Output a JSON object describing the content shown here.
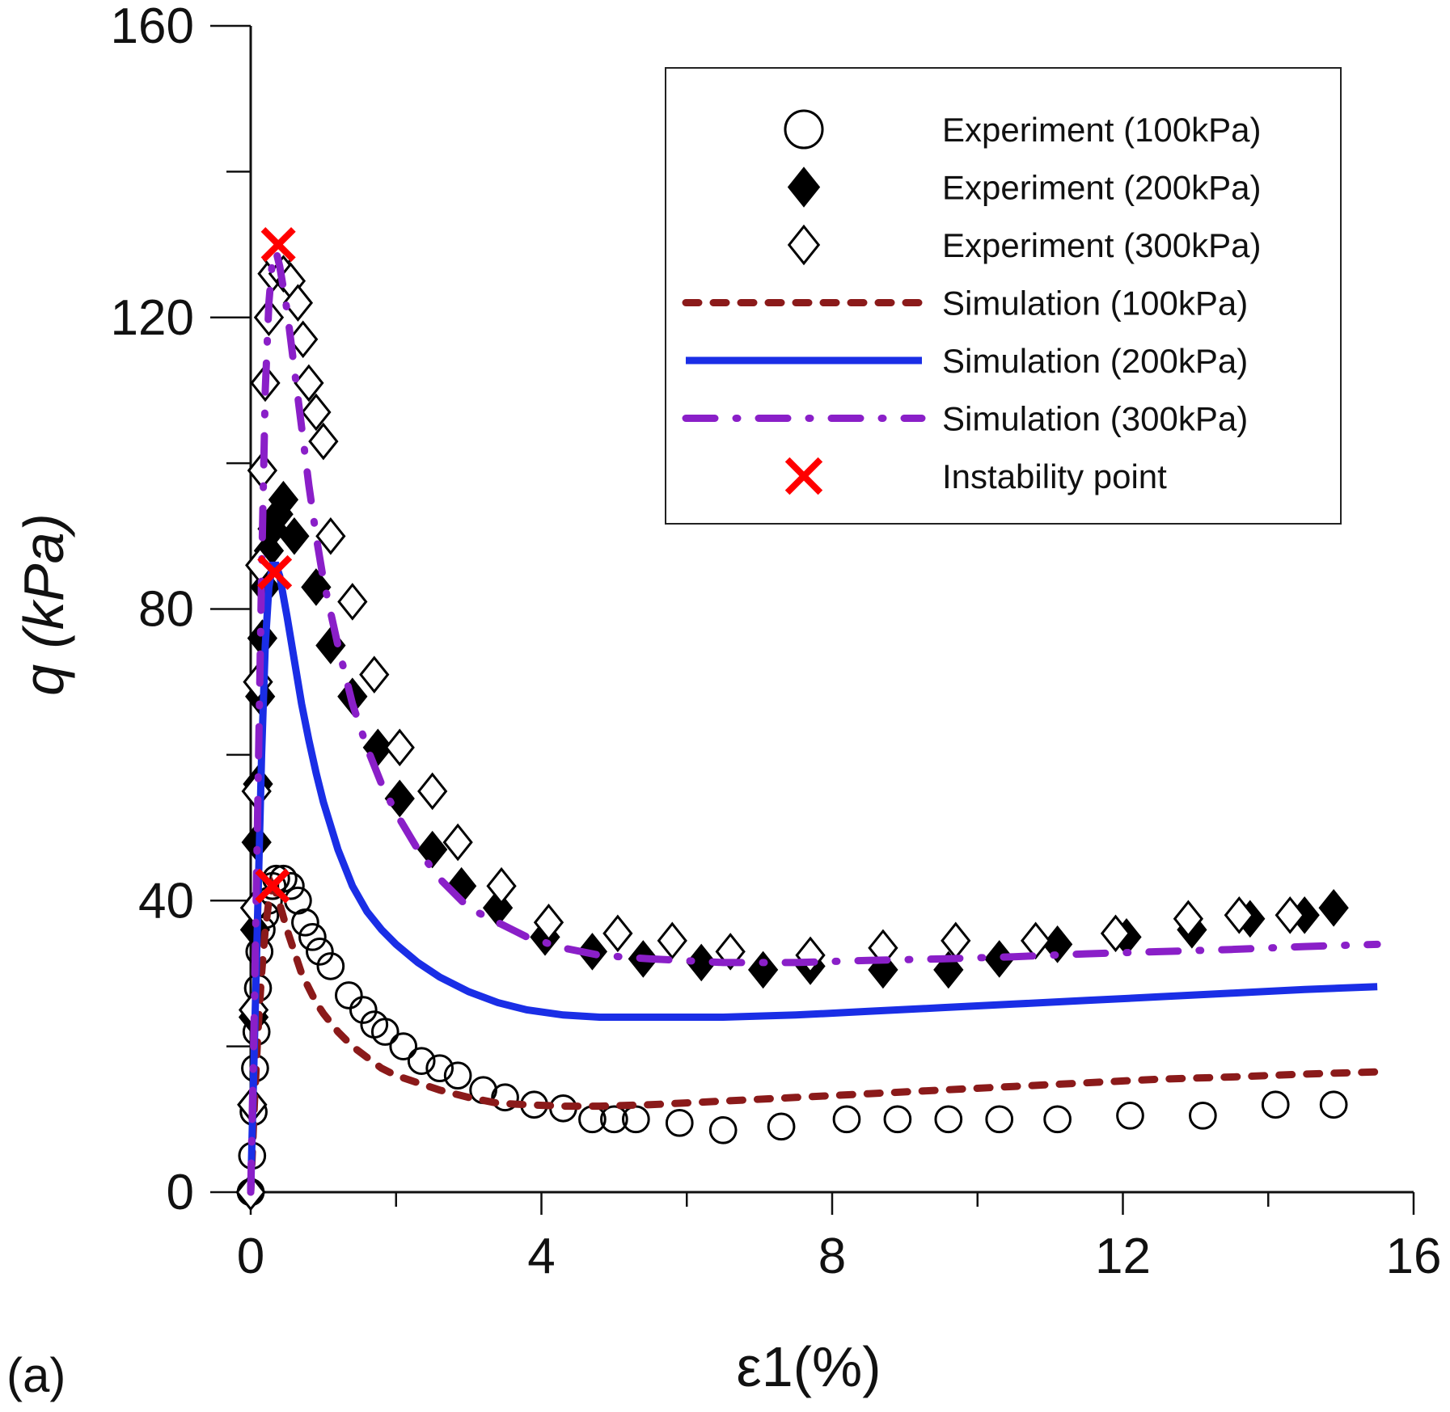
{
  "panel_label": "(a)",
  "chart_data": {
    "type": "scatter",
    "xlabel": "ε1(%)",
    "ylabel": "q (kPa)",
    "xlim": [
      0,
      16
    ],
    "ylim": [
      0,
      160
    ],
    "xticks": [
      0,
      4,
      8,
      12,
      16
    ],
    "yticks": [
      0,
      40,
      80,
      120,
      160
    ],
    "xtick_labels": [
      "0",
      "4",
      "8",
      "12",
      "16"
    ],
    "ytick_labels": [
      "0",
      "40",
      "80",
      "120",
      "160"
    ],
    "grid": false,
    "legend_position": "top-right",
    "series": [
      {
        "name": "Experiment (100kPa)",
        "kind": "marker",
        "marker": "circle-open",
        "color": "#000000",
        "x": [
          0.0,
          0.02,
          0.04,
          0.06,
          0.08,
          0.1,
          0.12,
          0.15,
          0.2,
          0.25,
          0.3,
          0.35,
          0.45,
          0.55,
          0.65,
          0.75,
          0.85,
          0.95,
          1.1,
          1.35,
          1.55,
          1.7,
          1.85,
          2.1,
          2.35,
          2.6,
          2.85,
          3.2,
          3.5,
          3.9,
          4.3,
          4.7,
          5.0,
          5.3,
          5.9,
          6.5,
          7.3,
          8.2,
          8.9,
          9.6,
          10.3,
          11.1,
          12.1,
          13.1,
          14.1,
          14.9
        ],
        "y": [
          0,
          5,
          11,
          17,
          22,
          28,
          33,
          36,
          38,
          40,
          42,
          43,
          43,
          42,
          40,
          37,
          35,
          33,
          31,
          27,
          25,
          23,
          22,
          20,
          18,
          17,
          16,
          14,
          13,
          12,
          11.5,
          10,
          10,
          10,
          9.5,
          8.5,
          9,
          10,
          10,
          10,
          10,
          10,
          10.5,
          10.5,
          12,
          12
        ]
      },
      {
        "name": "Experiment (200kPa)",
        "kind": "marker",
        "marker": "diamond-filled",
        "color": "#000000",
        "x": [
          0.0,
          0.02,
          0.04,
          0.06,
          0.08,
          0.1,
          0.13,
          0.16,
          0.2,
          0.25,
          0.3,
          0.38,
          0.45,
          0.6,
          0.9,
          1.1,
          1.4,
          1.75,
          2.05,
          2.5,
          2.9,
          3.4,
          4.05,
          4.7,
          5.4,
          6.2,
          7.05,
          7.7,
          8.7,
          9.6,
          10.3,
          11.1,
          12.05,
          12.95,
          13.75,
          14.5,
          14.9
        ],
        "y": [
          0,
          12,
          24,
          36,
          48,
          56,
          68,
          76,
          83,
          88,
          91,
          93,
          95,
          90,
          83,
          75,
          68,
          61,
          54,
          47,
          42,
          39,
          35,
          33,
          32,
          31.5,
          30.5,
          31,
          30.5,
          30.5,
          32,
          34,
          35,
          36,
          37.5,
          38,
          39
        ]
      },
      {
        "name": "Experiment (300kPa)",
        "kind": "marker",
        "marker": "diamond-open",
        "color": "#000000",
        "x": [
          0.0,
          0.02,
          0.04,
          0.06,
          0.08,
          0.1,
          0.13,
          0.16,
          0.2,
          0.25,
          0.3,
          0.37,
          0.45,
          0.55,
          0.65,
          0.72,
          0.8,
          0.9,
          1.0,
          1.1,
          1.4,
          1.7,
          2.05,
          2.5,
          2.85,
          3.45,
          4.1,
          5.05,
          5.8,
          6.6,
          7.7,
          8.7,
          9.7,
          10.8,
          11.9,
          12.9,
          13.6,
          14.3
        ],
        "y": [
          0,
          12,
          25,
          39,
          55,
          70,
          86,
          99,
          111,
          120,
          126,
          128,
          126,
          125,
          122,
          117,
          111,
          107,
          103,
          90,
          81,
          71,
          61,
          55,
          48,
          42,
          37,
          35.5,
          34.5,
          33,
          32.5,
          33.5,
          34.5,
          34.5,
          35.5,
          37.5,
          38,
          38
        ]
      },
      {
        "name": "Simulation (100kPa)",
        "kind": "line",
        "style": "dotted",
        "color": "#8b1a1a",
        "x": [
          0,
          0.05,
          0.1,
          0.15,
          0.2,
          0.25,
          0.3,
          0.35,
          0.4,
          0.5,
          0.6,
          0.7,
          0.8,
          0.9,
          1.0,
          1.2,
          1.4,
          1.6,
          1.8,
          2.0,
          2.3,
          2.6,
          3.0,
          3.4,
          3.8,
          4.3,
          4.8,
          5.5,
          6.5,
          7.5,
          8.5,
          9.5,
          10.5,
          11.5,
          12.5,
          13.5,
          14.5,
          15.5
        ],
        "y": [
          0,
          12,
          22,
          30,
          36,
          40,
          42,
          41,
          39.5,
          36,
          33,
          30,
          28,
          26,
          24.5,
          22,
          20,
          18.5,
          17,
          16,
          15,
          14,
          13,
          12.2,
          12,
          11.8,
          11.8,
          12,
          12.5,
          13,
          13.5,
          14,
          14.5,
          15,
          15.5,
          15.8,
          16.2,
          16.5
        ]
      },
      {
        "name": "Simulation (200kPa)",
        "kind": "line",
        "style": "solid",
        "color": "#1a2ee6",
        "x": [
          0,
          0.05,
          0.1,
          0.15,
          0.2,
          0.25,
          0.3,
          0.35,
          0.4,
          0.5,
          0.6,
          0.7,
          0.8,
          0.9,
          1.0,
          1.2,
          1.4,
          1.6,
          1.8,
          2.0,
          2.3,
          2.6,
          3.0,
          3.4,
          3.8,
          4.3,
          4.8,
          5.5,
          6.5,
          7.5,
          8.5,
          9.5,
          10.5,
          11.5,
          12.5,
          13.5,
          14.5,
          15.5
        ],
        "y": [
          0,
          20,
          40,
          60,
          75,
          83,
          86,
          86,
          84.5,
          79,
          73,
          67,
          62,
          57.5,
          53.5,
          47,
          42,
          38.5,
          36,
          34,
          31.5,
          29.5,
          27.5,
          26,
          25,
          24.3,
          24,
          24,
          24,
          24.3,
          24.8,
          25.3,
          25.8,
          26.3,
          26.8,
          27.3,
          27.8,
          28.2
        ]
      },
      {
        "name": "Simulation (300kPa)",
        "kind": "line",
        "style": "dashdot",
        "color": "#8a1fc8",
        "x": [
          0,
          0.05,
          0.1,
          0.15,
          0.2,
          0.25,
          0.3,
          0.35,
          0.4,
          0.5,
          0.6,
          0.7,
          0.8,
          0.9,
          1.0,
          1.2,
          1.4,
          1.6,
          1.8,
          2.0,
          2.3,
          2.6,
          3.0,
          3.4,
          3.8,
          4.3,
          4.8,
          5.5,
          6.5,
          7.5,
          8.5,
          9.5,
          10.5,
          11.5,
          12.5,
          13.5,
          14.5,
          15.5
        ],
        "y": [
          0,
          25,
          55,
          85,
          110,
          122,
          128,
          129,
          127,
          121,
          113,
          105,
          97,
          90,
          84,
          75,
          67,
          61,
          56,
          52,
          47,
          43,
          39,
          37,
          35,
          33.5,
          32.5,
          32,
          31.5,
          31.5,
          31.8,
          32,
          32.3,
          32.7,
          33,
          33.3,
          33.7,
          34
        ]
      },
      {
        "name": "Instability point",
        "kind": "marker",
        "marker": "x",
        "color": "#ff0000",
        "x": [
          0.38,
          0.33,
          0.3
        ],
        "y": [
          130,
          85,
          42
        ]
      }
    ]
  }
}
